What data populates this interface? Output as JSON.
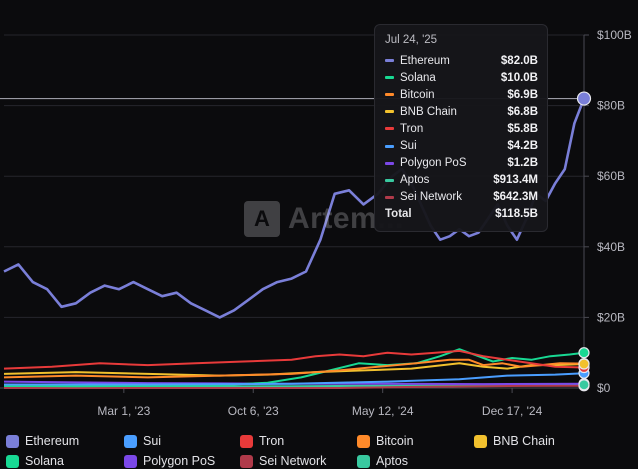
{
  "chart_data": {
    "type": "line",
    "x_ticks": [
      "Mar 1, '23",
      "Oct 6, '23",
      "May 12, '24",
      "Dec 17, '24"
    ],
    "y_ticks": [
      "$0",
      "$20B",
      "$40B",
      "$60B",
      "$80B",
      "$100B"
    ],
    "ylim": [
      0,
      100
    ],
    "unit": "B",
    "grid": "horizontal",
    "legend_position": "bottom",
    "hover_value": 82.0,
    "series": [
      {
        "name": "Ethereum",
        "color": "#7a7fd8",
        "points": [
          [
            0,
            33
          ],
          [
            3,
            35
          ],
          [
            6,
            30
          ],
          [
            9,
            28
          ],
          [
            12,
            23
          ],
          [
            15,
            24
          ],
          [
            18,
            27
          ],
          [
            21,
            29
          ],
          [
            24,
            28
          ],
          [
            27,
            30
          ],
          [
            30,
            28
          ],
          [
            33,
            26
          ],
          [
            36,
            27
          ],
          [
            39,
            24
          ],
          [
            42,
            22
          ],
          [
            45,
            20
          ],
          [
            48,
            22
          ],
          [
            51,
            25
          ],
          [
            54,
            28
          ],
          [
            57,
            30
          ],
          [
            60,
            31
          ],
          [
            63,
            33
          ],
          [
            66,
            42
          ],
          [
            69,
            55
          ],
          [
            72,
            56
          ],
          [
            75,
            52
          ],
          [
            78,
            55
          ],
          [
            81,
            60
          ],
          [
            83,
            62
          ],
          [
            85,
            58
          ],
          [
            87,
            52
          ],
          [
            89,
            46
          ],
          [
            91,
            42
          ],
          [
            93,
            43
          ],
          [
            95,
            45
          ],
          [
            97,
            43
          ],
          [
            99,
            44
          ],
          [
            101,
            48
          ],
          [
            103,
            52
          ],
          [
            105,
            46
          ],
          [
            107,
            42
          ],
          [
            109,
            48
          ],
          [
            111,
            55
          ],
          [
            113,
            53
          ],
          [
            115,
            58
          ],
          [
            117,
            62
          ],
          [
            119,
            75
          ],
          [
            121,
            82
          ]
        ]
      },
      {
        "name": "Sui",
        "color": "#4a9eff",
        "points": [
          [
            0,
            1.0
          ],
          [
            30,
            1.0
          ],
          [
            60,
            1.2
          ],
          [
            80,
            1.8
          ],
          [
            95,
            2.5
          ],
          [
            105,
            3.5
          ],
          [
            115,
            3.8
          ],
          [
            121,
            4.2
          ]
        ]
      },
      {
        "name": "Tron",
        "color": "#e83a3a",
        "points": [
          [
            0,
            5.5
          ],
          [
            10,
            6
          ],
          [
            20,
            7
          ],
          [
            30,
            6.5
          ],
          [
            40,
            7
          ],
          [
            50,
            7.5
          ],
          [
            60,
            8
          ],
          [
            65,
            9
          ],
          [
            70,
            9.5
          ],
          [
            75,
            9
          ],
          [
            80,
            10
          ],
          [
            85,
            9.5
          ],
          [
            90,
            10
          ],
          [
            95,
            10.5
          ],
          [
            100,
            9
          ],
          [
            105,
            8
          ],
          [
            110,
            7
          ],
          [
            115,
            6
          ],
          [
            121,
            5.8
          ]
        ]
      },
      {
        "name": "Bitcoin",
        "color": "#ff8a2a",
        "points": [
          [
            0,
            3
          ],
          [
            15,
            3.5
          ],
          [
            30,
            3
          ],
          [
            45,
            3.5
          ],
          [
            60,
            4
          ],
          [
            70,
            5
          ],
          [
            78,
            6
          ],
          [
            86,
            7
          ],
          [
            93,
            8
          ],
          [
            97,
            8
          ],
          [
            100,
            6.5
          ],
          [
            104,
            7
          ],
          [
            108,
            6
          ],
          [
            112,
            6.5
          ],
          [
            116,
            7
          ],
          [
            121,
            6.9
          ]
        ]
      },
      {
        "name": "BNB Chain",
        "color": "#f2c12e",
        "points": [
          [
            0,
            4
          ],
          [
            15,
            4.5
          ],
          [
            30,
            4
          ],
          [
            45,
            3.5
          ],
          [
            55,
            3.8
          ],
          [
            65,
            4.5
          ],
          [
            75,
            5
          ],
          [
            85,
            5.5
          ],
          [
            95,
            7
          ],
          [
            100,
            6
          ],
          [
            105,
            5.5
          ],
          [
            110,
            6.5
          ],
          [
            115,
            6.5
          ],
          [
            121,
            6.8
          ]
        ]
      },
      {
        "name": "Solana",
        "color": "#18d993",
        "points": [
          [
            0,
            0.6
          ],
          [
            15,
            0.5
          ],
          [
            30,
            0.6
          ],
          [
            45,
            0.8
          ],
          [
            55,
            1.5
          ],
          [
            62,
            3
          ],
          [
            68,
            5
          ],
          [
            74,
            7
          ],
          [
            80,
            6.5
          ],
          [
            86,
            7
          ],
          [
            91,
            9
          ],
          [
            95,
            11
          ],
          [
            99,
            9
          ],
          [
            102,
            7.5
          ],
          [
            106,
            8.5
          ],
          [
            110,
            8
          ],
          [
            114,
            9
          ],
          [
            118,
            9.5
          ],
          [
            121,
            10
          ]
        ]
      },
      {
        "name": "Polygon PoS",
        "color": "#7b48e8",
        "points": [
          [
            0,
            1.8
          ],
          [
            15,
            1.6
          ],
          [
            30,
            1.4
          ],
          [
            45,
            1.3
          ],
          [
            60,
            1.2
          ],
          [
            80,
            1.2
          ],
          [
            100,
            1.1
          ],
          [
            121,
            1.2
          ]
        ]
      },
      {
        "name": "Sei Network",
        "color": "#b03a4a",
        "points": [
          [
            0,
            0
          ],
          [
            70,
            0
          ],
          [
            80,
            0.2
          ],
          [
            90,
            0.4
          ],
          [
            100,
            0.5
          ],
          [
            110,
            0.6
          ],
          [
            121,
            0.64
          ]
        ]
      },
      {
        "name": "Aptos",
        "color": "#39c9a0",
        "points": [
          [
            0,
            0.3
          ],
          [
            30,
            0.4
          ],
          [
            60,
            0.5
          ],
          [
            90,
            0.7
          ],
          [
            110,
            0.8
          ],
          [
            121,
            0.91
          ]
        ]
      }
    ]
  },
  "watermark": {
    "letter": "A",
    "text": "Artem..."
  },
  "tooltip": {
    "date": "Jul 24, '25",
    "rows": [
      {
        "name": "Ethereum",
        "value": "$82.0B",
        "color": "#7a7fd8"
      },
      {
        "name": "Solana",
        "value": "$10.0B",
        "color": "#18d993"
      },
      {
        "name": "Bitcoin",
        "value": "$6.9B",
        "color": "#ff8a2a"
      },
      {
        "name": "BNB Chain",
        "value": "$6.8B",
        "color": "#f2c12e"
      },
      {
        "name": "Tron",
        "value": "$5.8B",
        "color": "#e83a3a"
      },
      {
        "name": "Sui",
        "value": "$4.2B",
        "color": "#4a9eff"
      },
      {
        "name": "Polygon PoS",
        "value": "$1.2B",
        "color": "#7b48e8"
      },
      {
        "name": "Aptos",
        "value": "$913.4M",
        "color": "#39c9a0"
      },
      {
        "name": "Sei Network",
        "value": "$642.3M",
        "color": "#b03a4a"
      }
    ],
    "total_label": "Total",
    "total_value": "$118.5B"
  },
  "legend": [
    {
      "name": "Ethereum",
      "color": "#7a7fd8"
    },
    {
      "name": "Sui",
      "color": "#4a9eff"
    },
    {
      "name": "Tron",
      "color": "#e83a3a"
    },
    {
      "name": "Bitcoin",
      "color": "#ff8a2a"
    },
    {
      "name": "BNB Chain",
      "color": "#f2c12e"
    },
    {
      "name": "Solana",
      "color": "#18d993"
    },
    {
      "name": "Polygon PoS",
      "color": "#7b48e8"
    },
    {
      "name": "Sei Network",
      "color": "#b03a4a"
    },
    {
      "name": "Aptos",
      "color": "#39c9a0"
    }
  ]
}
